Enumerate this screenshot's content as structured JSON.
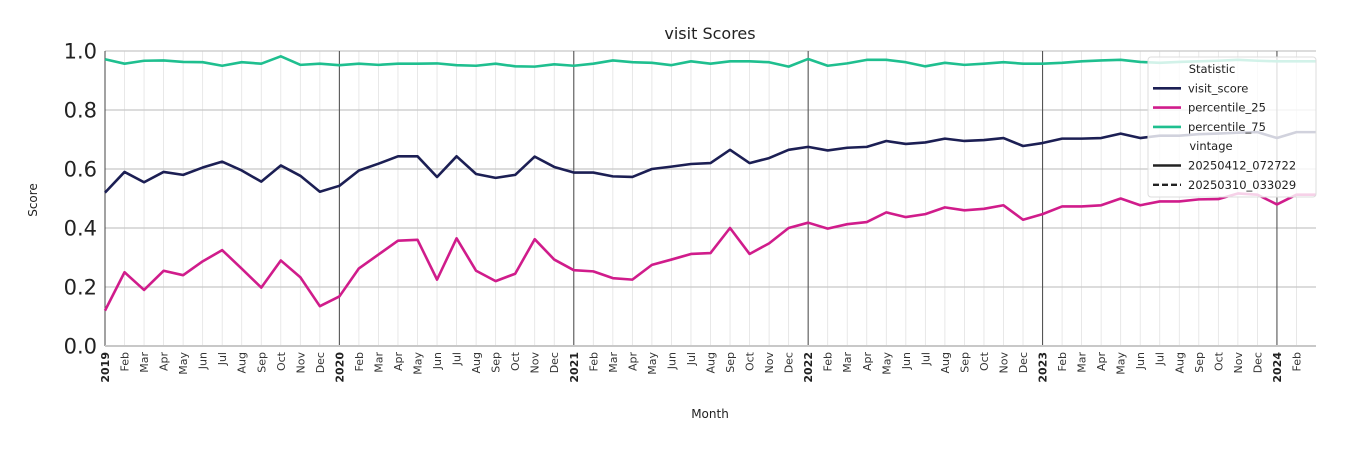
{
  "chart_data": {
    "type": "line",
    "title": "visit Scores",
    "xlabel": "Month",
    "ylabel": "Score",
    "ylim": [
      0.0,
      1.0
    ],
    "yticks": [
      "0.0",
      "0.2",
      "0.4",
      "0.6",
      "0.8",
      "1.0"
    ],
    "x_start": "2019-01",
    "x_end": "2024-02",
    "x_tick_labels": [
      "2019",
      "Feb",
      "Mar",
      "Apr",
      "May",
      "Jun",
      "Jul",
      "Aug",
      "Sep",
      "Oct",
      "Nov",
      "Dec",
      "2020",
      "Feb",
      "Mar",
      "Apr",
      "May",
      "Jun",
      "Jul",
      "Aug",
      "Sep",
      "Oct",
      "Nov",
      "Dec",
      "2021",
      "Feb",
      "Mar",
      "Apr",
      "May",
      "Jun",
      "Jul",
      "Aug",
      "Sep",
      "Oct",
      "Nov",
      "Dec",
      "2022",
      "Feb",
      "Mar",
      "Apr",
      "May",
      "Jun",
      "Jul",
      "Aug",
      "Sep",
      "Oct",
      "Nov",
      "Dec",
      "2023",
      "Feb",
      "Mar",
      "Apr",
      "May",
      "Jun",
      "Jul",
      "Aug",
      "Sep",
      "Oct",
      "Nov",
      "Dec",
      "2024",
      "Feb"
    ],
    "year_lines": [
      "2020",
      "2021",
      "2022",
      "2023",
      "2024"
    ],
    "grid": true,
    "legend_placement": "top-right",
    "legend": {
      "statistic_title": "Statistic",
      "vintage_title": "vintage",
      "vintages": [
        {
          "name": "20250412_072722",
          "dash": "solid"
        },
        {
          "name": "20250310_033029",
          "dash": "dashed"
        }
      ]
    },
    "series": [
      {
        "name": "visit_score",
        "color": "#1c1f54",
        "values": [
          0.52,
          0.59,
          0.555,
          0.59,
          0.58,
          0.605,
          0.625,
          0.595,
          0.557,
          0.612,
          0.577,
          0.523,
          0.543,
          0.595,
          0.618,
          0.643,
          0.643,
          0.573,
          0.643,
          0.583,
          0.57,
          0.58,
          0.642,
          0.607,
          0.588,
          0.588,
          0.575,
          0.573,
          0.6,
          0.608,
          0.617,
          0.62,
          0.665,
          0.62,
          0.637,
          0.665,
          0.675,
          0.663,
          0.672,
          0.675,
          0.695,
          0.685,
          0.69,
          0.703,
          0.695,
          0.698,
          0.705,
          0.678,
          0.688,
          0.703,
          0.703,
          0.705,
          0.72,
          0.705,
          0.713,
          0.713,
          0.718,
          0.72,
          0.723,
          0.725,
          0.705,
          0.725,
          0.725
        ]
      },
      {
        "name": "percentile_25",
        "color": "#d01c8b",
        "values": [
          0.12,
          0.25,
          0.19,
          0.255,
          0.24,
          0.287,
          0.325,
          0.262,
          0.198,
          0.29,
          0.233,
          0.135,
          0.168,
          0.263,
          0.31,
          0.357,
          0.36,
          0.225,
          0.365,
          0.255,
          0.22,
          0.245,
          0.362,
          0.293,
          0.257,
          0.253,
          0.23,
          0.225,
          0.275,
          0.293,
          0.312,
          0.315,
          0.4,
          0.312,
          0.348,
          0.4,
          0.418,
          0.398,
          0.413,
          0.42,
          0.453,
          0.437,
          0.447,
          0.47,
          0.46,
          0.465,
          0.477,
          0.428,
          0.447,
          0.473,
          0.473,
          0.477,
          0.5,
          0.477,
          0.49,
          0.49,
          0.497,
          0.498,
          0.517,
          0.513,
          0.48,
          0.513,
          0.513
        ]
      },
      {
        "name": "percentile_75",
        "color": "#1fbf8f",
        "values": [
          0.972,
          0.957,
          0.967,
          0.968,
          0.963,
          0.962,
          0.95,
          0.962,
          0.957,
          0.982,
          0.953,
          0.957,
          0.952,
          0.957,
          0.953,
          0.957,
          0.957,
          0.958,
          0.952,
          0.95,
          0.957,
          0.948,
          0.947,
          0.955,
          0.95,
          0.957,
          0.968,
          0.962,
          0.96,
          0.952,
          0.965,
          0.957,
          0.965,
          0.965,
          0.962,
          0.947,
          0.973,
          0.95,
          0.958,
          0.97,
          0.97,
          0.962,
          0.948,
          0.96,
          0.953,
          0.957,
          0.962,
          0.957,
          0.957,
          0.96,
          0.965,
          0.968,
          0.97,
          0.963,
          0.96,
          0.963,
          0.965,
          0.967,
          0.97,
          0.967,
          0.965,
          0.965,
          0.965
        ]
      }
    ]
  }
}
